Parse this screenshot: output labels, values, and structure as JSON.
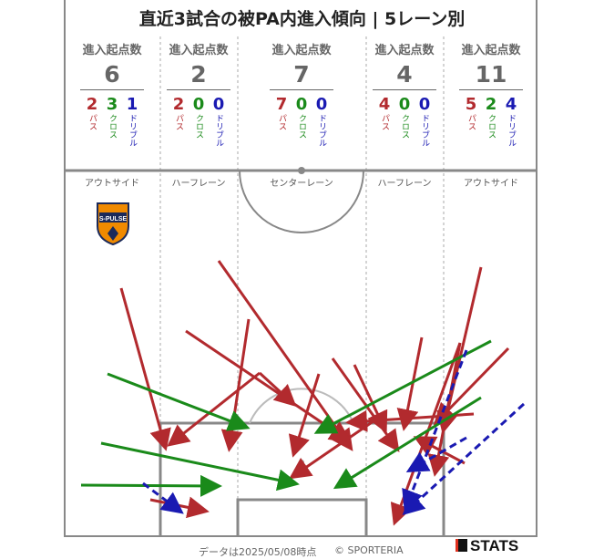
{
  "title": "直近3試合の被PA内進入傾向 | 5レーン別",
  "header_label": "進入起点数",
  "type_labels": {
    "pass": "パス",
    "cross": "クロス",
    "dribble": "ドリブル"
  },
  "colors": {
    "pass": "#b22a2e",
    "cross": "#1a8a1a",
    "dribble": "#1a1ab2",
    "team": "#f08a00"
  },
  "lanes": [
    {
      "name": "アウトサイド",
      "total": "6",
      "pass": "2",
      "cross": "3",
      "dribble": "1"
    },
    {
      "name": "ハーフレーン",
      "total": "2",
      "pass": "2",
      "cross": "0",
      "dribble": "0"
    },
    {
      "name": "センターレーン",
      "total": "7",
      "pass": "7",
      "cross": "0",
      "dribble": "0"
    },
    {
      "name": "ハーフレーン",
      "total": "4",
      "pass": "4",
      "cross": "0",
      "dribble": "0"
    },
    {
      "name": "アウトサイド",
      "total": "11",
      "pass": "5",
      "cross": "2",
      "dribble": "4"
    }
  ],
  "team_logo_text": "S-PULSE",
  "footer": "データは2025/05/08時点",
  "copyright": "© SPORTERIA",
  "brand": "STATS"
}
